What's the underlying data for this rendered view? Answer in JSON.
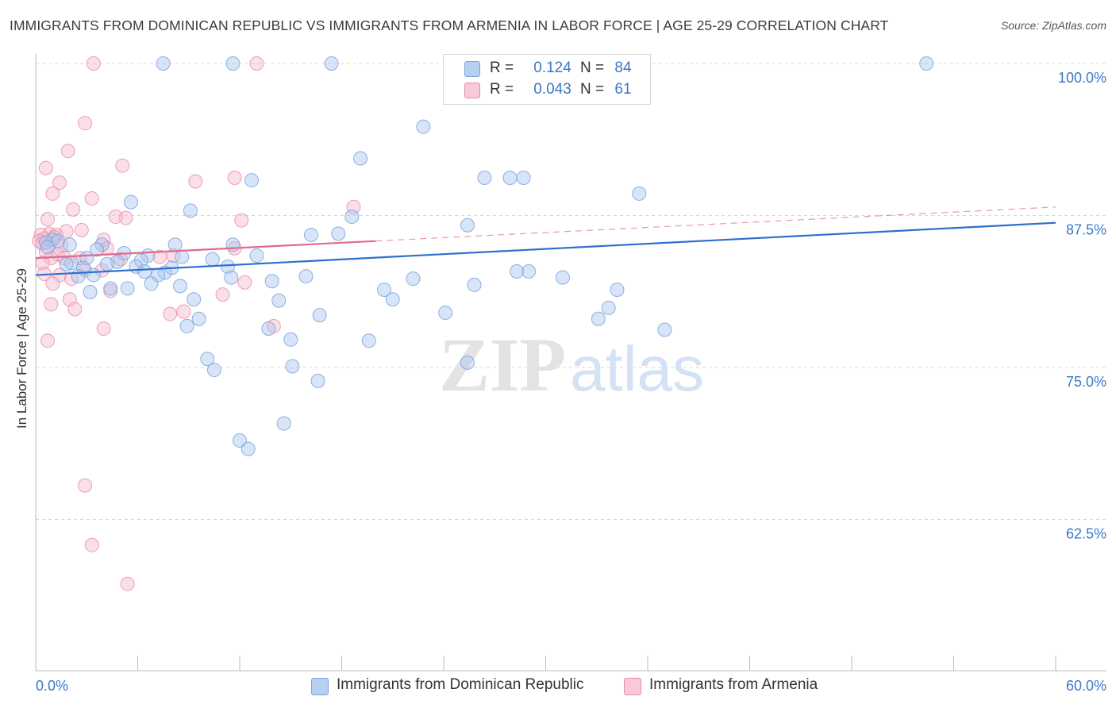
{
  "title": "IMMIGRANTS FROM DOMINICAN REPUBLIC VS IMMIGRANTS FROM ARMENIA IN LABOR FORCE | AGE 25-29 CORRELATION CHART",
  "source": "Source: ZipAtlas.com",
  "watermark": {
    "zip": "ZIP",
    "atlas": "atlas"
  },
  "legend": {
    "rows": [
      {
        "r_label": "R =",
        "r_value": "0.124",
        "n_label": "N =",
        "n_value": "84",
        "color": "#a9c6ef"
      },
      {
        "r_label": "R =",
        "r_value": "0.043",
        "n_label": "N =",
        "n_value": "61",
        "color": "#f5b8cb"
      }
    ]
  },
  "bottom_legend": [
    {
      "label": "Immigrants from Dominican Republic",
      "color": "#a9c6ef"
    },
    {
      "label": "Immigrants from Armenia",
      "color": "#f5b8cb"
    }
  ],
  "colors": {
    "blue_fill": "#a9c6ef",
    "blue_stroke": "#7aa3dc",
    "blue_line": "#2d6fd0",
    "pink_fill": "#f5b8cb",
    "pink_stroke": "#e88aaa",
    "pink_line": "#e2698f",
    "axis_text": "#3a78c8",
    "grid": "#d8d8d8"
  },
  "chart_data": {
    "type": "scatter",
    "title": "IMMIGRANTS FROM DOMINICAN REPUBLIC VS IMMIGRANTS FROM ARMENIA IN LABOR FORCE | AGE 25-29 CORRELATION CHART",
    "xlabel": "",
    "ylabel": "In Labor Force | Age 25-29",
    "xlim": [
      0,
      60
    ],
    "ylim": [
      50,
      101.5
    ],
    "x_tick_labels": [
      "0.0%",
      "60.0%"
    ],
    "y_ticks": [
      62.5,
      75.0,
      87.5,
      100.0
    ],
    "y_tick_labels": [
      "62.5%",
      "75.0%",
      "87.5%",
      "100.0%"
    ],
    "series": [
      {
        "name": "Immigrants from Dominican Republic",
        "color": "#a9c6ef",
        "trend": {
          "x": [
            0,
            60
          ],
          "y": [
            82.6,
            86.9
          ]
        },
        "points": [
          [
            7.5,
            100
          ],
          [
            11.6,
            100
          ],
          [
            17.4,
            100
          ],
          [
            52.4,
            100
          ],
          [
            22.8,
            94.8
          ],
          [
            19.1,
            92.2
          ],
          [
            26.4,
            90.6
          ],
          [
            27.9,
            90.6
          ],
          [
            12.7,
            90.4
          ],
          [
            28.7,
            90.6
          ],
          [
            35.5,
            89.3
          ],
          [
            5.6,
            88.6
          ],
          [
            9.1,
            87.9
          ],
          [
            18.6,
            87.4
          ],
          [
            25.4,
            86.7
          ],
          [
            17.8,
            86.0
          ],
          [
            16.2,
            85.9
          ],
          [
            1.0,
            85.5
          ],
          [
            1.3,
            85.4
          ],
          [
            0.6,
            85.3
          ],
          [
            2.0,
            85.1
          ],
          [
            3.9,
            85.1
          ],
          [
            8.2,
            85.1
          ],
          [
            11.6,
            85.1
          ],
          [
            0.7,
            84.9
          ],
          [
            3.6,
            84.7
          ],
          [
            5.2,
            84.4
          ],
          [
            6.6,
            84.2
          ],
          [
            13.0,
            84.2
          ],
          [
            8.6,
            84.1
          ],
          [
            3.0,
            84.0
          ],
          [
            10.4,
            83.9
          ],
          [
            2.1,
            83.6
          ],
          [
            6.2,
            83.8
          ],
          [
            11.3,
            83.3
          ],
          [
            4.8,
            83.7
          ],
          [
            1.8,
            83.5
          ],
          [
            4.2,
            83.5
          ],
          [
            5.9,
            83.3
          ],
          [
            8.0,
            83.2
          ],
          [
            2.8,
            83.2
          ],
          [
            6.4,
            82.9
          ],
          [
            7.6,
            82.8
          ],
          [
            28.3,
            82.9
          ],
          [
            29.0,
            82.9
          ],
          [
            31.0,
            82.4
          ],
          [
            15.9,
            82.5
          ],
          [
            22.2,
            82.3
          ],
          [
            3.4,
            82.6
          ],
          [
            2.5,
            82.5
          ],
          [
            7.2,
            82.6
          ],
          [
            11.5,
            82.4
          ],
          [
            13.9,
            82.1
          ],
          [
            8.5,
            81.7
          ],
          [
            6.8,
            81.9
          ],
          [
            25.8,
            81.8
          ],
          [
            34.2,
            81.4
          ],
          [
            5.4,
            81.5
          ],
          [
            20.5,
            81.4
          ],
          [
            4.4,
            81.5
          ],
          [
            3.2,
            81.2
          ],
          [
            9.3,
            80.6
          ],
          [
            14.3,
            80.5
          ],
          [
            21.0,
            80.6
          ],
          [
            33.7,
            79.9
          ],
          [
            16.7,
            79.3
          ],
          [
            24.1,
            79.5
          ],
          [
            9.6,
            79.0
          ],
          [
            33.1,
            79.0
          ],
          [
            37.0,
            78.1
          ],
          [
            8.9,
            78.4
          ],
          [
            13.7,
            78.2
          ],
          [
            15.0,
            77.3
          ],
          [
            19.6,
            77.2
          ],
          [
            10.1,
            75.7
          ],
          [
            15.1,
            75.1
          ],
          [
            10.5,
            74.8
          ],
          [
            25.4,
            75.4
          ],
          [
            16.6,
            73.9
          ],
          [
            14.6,
            70.4
          ],
          [
            12.0,
            69.0
          ],
          [
            12.5,
            68.3
          ]
        ]
      },
      {
        "name": "Immigrants from Armenia",
        "color": "#f5b8cb",
        "trend": {
          "x": [
            0,
            20
          ],
          "y": [
            84.0,
            85.4
          ],
          "dashed_to": {
            "x": 60,
            "y": 88.2
          }
        },
        "points": [
          [
            3.4,
            100
          ],
          [
            13.0,
            100
          ],
          [
            2.9,
            95.1
          ],
          [
            1.9,
            92.8
          ],
          [
            0.6,
            91.4
          ],
          [
            5.1,
            91.6
          ],
          [
            11.7,
            90.6
          ],
          [
            9.4,
            90.3
          ],
          [
            1.4,
            90.2
          ],
          [
            1.0,
            89.3
          ],
          [
            3.3,
            88.9
          ],
          [
            18.7,
            88.2
          ],
          [
            2.2,
            88.0
          ],
          [
            5.3,
            87.3
          ],
          [
            4.7,
            87.4
          ],
          [
            12.1,
            87.1
          ],
          [
            0.7,
            87.2
          ],
          [
            2.7,
            86.3
          ],
          [
            1.8,
            86.2
          ],
          [
            0.8,
            86.0
          ],
          [
            0.3,
            85.9
          ],
          [
            1.2,
            85.9
          ],
          [
            0.5,
            85.6
          ],
          [
            1.1,
            85.7
          ],
          [
            4.0,
            85.5
          ],
          [
            0.2,
            85.4
          ],
          [
            0.4,
            85.2
          ],
          [
            1.5,
            85.0
          ],
          [
            4.2,
            84.8
          ],
          [
            11.7,
            84.8
          ],
          [
            0.6,
            84.5
          ],
          [
            1.3,
            84.3
          ],
          [
            8.1,
            84.2
          ],
          [
            7.3,
            84.1
          ],
          [
            0.9,
            84.0
          ],
          [
            1.7,
            84.0
          ],
          [
            2.6,
            84.0
          ],
          [
            0.4,
            83.6
          ],
          [
            5.0,
            83.9
          ],
          [
            2.9,
            83.0
          ],
          [
            1.4,
            82.6
          ],
          [
            0.5,
            82.7
          ],
          [
            3.9,
            83.0
          ],
          [
            12.3,
            82.0
          ],
          [
            2.1,
            82.3
          ],
          [
            1.0,
            81.9
          ],
          [
            4.4,
            81.3
          ],
          [
            11.0,
            81.0
          ],
          [
            2.0,
            80.6
          ],
          [
            0.9,
            80.2
          ],
          [
            2.3,
            79.8
          ],
          [
            7.9,
            79.4
          ],
          [
            8.7,
            79.6
          ],
          [
            14.0,
            78.4
          ],
          [
            4.0,
            78.2
          ],
          [
            0.7,
            77.2
          ],
          [
            2.9,
            65.3
          ],
          [
            3.3,
            60.4
          ],
          [
            5.4,
            57.2
          ]
        ]
      }
    ]
  }
}
